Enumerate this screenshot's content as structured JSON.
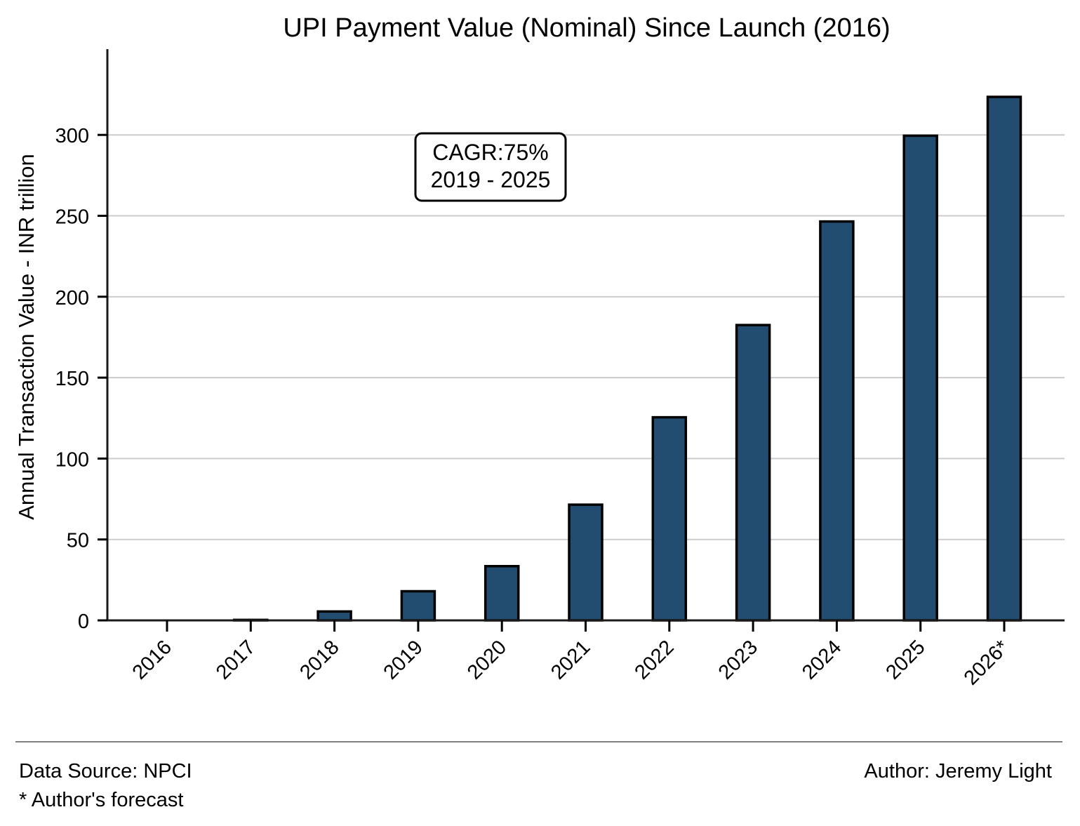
{
  "chart_data": {
    "type": "bar",
    "title": "UPI Payment Value (Nominal) Since Launch (2016)",
    "xlabel": "",
    "ylabel": "Annual Transaction Value - INR trillion",
    "categories": [
      "2016",
      "2017",
      "2018",
      "2019",
      "2020",
      "2021",
      "2022",
      "2023",
      "2024",
      "2025",
      "2026*"
    ],
    "values": [
      0.0,
      0.3,
      5.5,
      18.0,
      33.5,
      71.5,
      125.5,
      182.5,
      246.5,
      299.5,
      323.5
    ],
    "ylim": [
      0,
      340
    ],
    "yticks": [
      0,
      50,
      100,
      150,
      200,
      250,
      300
    ],
    "grid": "horizontal",
    "bar_color": "#234d70",
    "bar_edge_color": "#000000",
    "grid_color": "#cccccc",
    "annotation": {
      "lines": [
        "CAGR:75%",
        "2019 - 2025"
      ]
    }
  },
  "footer": {
    "source": "Data Source: NPCI",
    "forecast_note": "* Author's forecast",
    "author": "Author: Jeremy Light"
  }
}
